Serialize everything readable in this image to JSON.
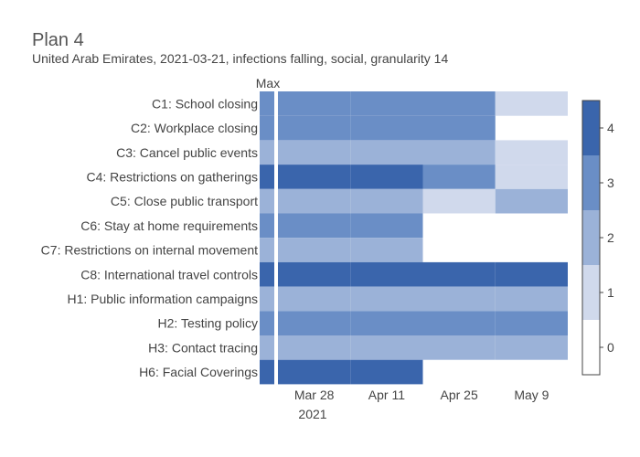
{
  "chart_data": {
    "type": "heatmap",
    "title": "Plan 4",
    "subtitle": "United Arab Emirates, 2021-03-21, infections falling, social, granularity 14",
    "max_label": "Max",
    "x_ticks": [
      {
        "label": "Mar 28",
        "date": "2021-03-28"
      },
      {
        "label": "Apr 11",
        "date": "2021-04-11"
      },
      {
        "label": "Apr 25",
        "date": "2021-04-25"
      },
      {
        "label": "May 9",
        "date": "2021-05-09"
      }
    ],
    "x_year": "2021",
    "periods": [
      "2021-03-21",
      "2021-04-04",
      "2021-04-18",
      "2021-05-02"
    ],
    "plan_end": "2021-05-16",
    "zrange": [
      0,
      4
    ],
    "colorbar_ticks": [
      "0",
      "1",
      "2",
      "3",
      "4"
    ],
    "colors": [
      "#ffffff",
      "#d0d9ec",
      "#9bb2d8",
      "#6a8ec6",
      "#3a65ac"
    ],
    "rows": [
      {
        "label": "C1: School closing",
        "max": 3,
        "values": [
          3,
          3,
          3,
          1
        ]
      },
      {
        "label": "C2: Workplace closing",
        "max": 3,
        "values": [
          3,
          3,
          3,
          null
        ]
      },
      {
        "label": "C3: Cancel public events",
        "max": 2,
        "values": [
          2,
          2,
          2,
          1
        ]
      },
      {
        "label": "C4: Restrictions on gatherings",
        "max": 4,
        "values": [
          4,
          4,
          3,
          1
        ]
      },
      {
        "label": "C5: Close public transport",
        "max": 2,
        "values": [
          2,
          2,
          1,
          2
        ]
      },
      {
        "label": "C6: Stay at home requirements",
        "max": 3,
        "values": [
          3,
          3,
          null,
          null
        ]
      },
      {
        "label": "C7: Restrictions on internal movement",
        "max": 2,
        "values": [
          2,
          2,
          null,
          null
        ]
      },
      {
        "label": "C8: International travel controls",
        "max": 4,
        "values": [
          4,
          4,
          4,
          4
        ]
      },
      {
        "label": "H1: Public information campaigns",
        "max": 2,
        "values": [
          2,
          2,
          2,
          2
        ]
      },
      {
        "label": "H2: Testing policy",
        "max": 3,
        "values": [
          3,
          3,
          3,
          3
        ]
      },
      {
        "label": "H3: Contact tracing",
        "max": 2,
        "values": [
          2,
          2,
          2,
          2
        ]
      },
      {
        "label": "H6: Facial Coverings",
        "max": 4,
        "values": [
          4,
          4,
          null,
          null
        ]
      }
    ]
  }
}
